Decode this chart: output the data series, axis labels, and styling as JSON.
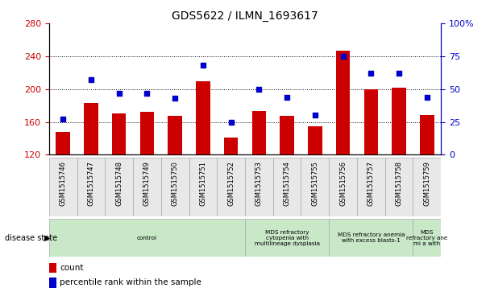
{
  "title": "GDS5622 / ILMN_1693617",
  "samples": [
    "GSM1515746",
    "GSM1515747",
    "GSM1515748",
    "GSM1515749",
    "GSM1515750",
    "GSM1515751",
    "GSM1515752",
    "GSM1515753",
    "GSM1515754",
    "GSM1515755",
    "GSM1515756",
    "GSM1515757",
    "GSM1515758",
    "GSM1515759"
  ],
  "bar_values": [
    148,
    183,
    170,
    172,
    167,
    210,
    141,
    173,
    167,
    155,
    247,
    200,
    202,
    168
  ],
  "dot_values": [
    27,
    57,
    47,
    47,
    43,
    68,
    25,
    50,
    44,
    30,
    75,
    62,
    62,
    44
  ],
  "bar_color": "#cc0000",
  "dot_color": "#0000cc",
  "ylim_left": [
    120,
    280
  ],
  "ylim_right": [
    0,
    100
  ],
  "yticks_left": [
    120,
    160,
    200,
    240,
    280
  ],
  "yticks_right": [
    0,
    25,
    50,
    75,
    100
  ],
  "ytick_labels_right": [
    "0",
    "25",
    "50",
    "75",
    "100%"
  ],
  "hlines": [
    160,
    200,
    240
  ],
  "groups": [
    {
      "label": "control",
      "start": 0,
      "end": 7
    },
    {
      "label": "MDS refractory\ncytopenia with\nmultilineage dysplasia",
      "start": 7,
      "end": 10
    },
    {
      "label": "MDS refractory anemia\nwith excess blasts-1",
      "start": 10,
      "end": 13
    },
    {
      "label": "MDS\nrefractory ane\nmi a with",
      "start": 13,
      "end": 14
    }
  ],
  "legend_bar_label": "count",
  "legend_dot_label": "percentile rank within the sample",
  "disease_state_label": "disease state",
  "bg_color": "#e8e8e8",
  "group_color": "#c8e8c8"
}
